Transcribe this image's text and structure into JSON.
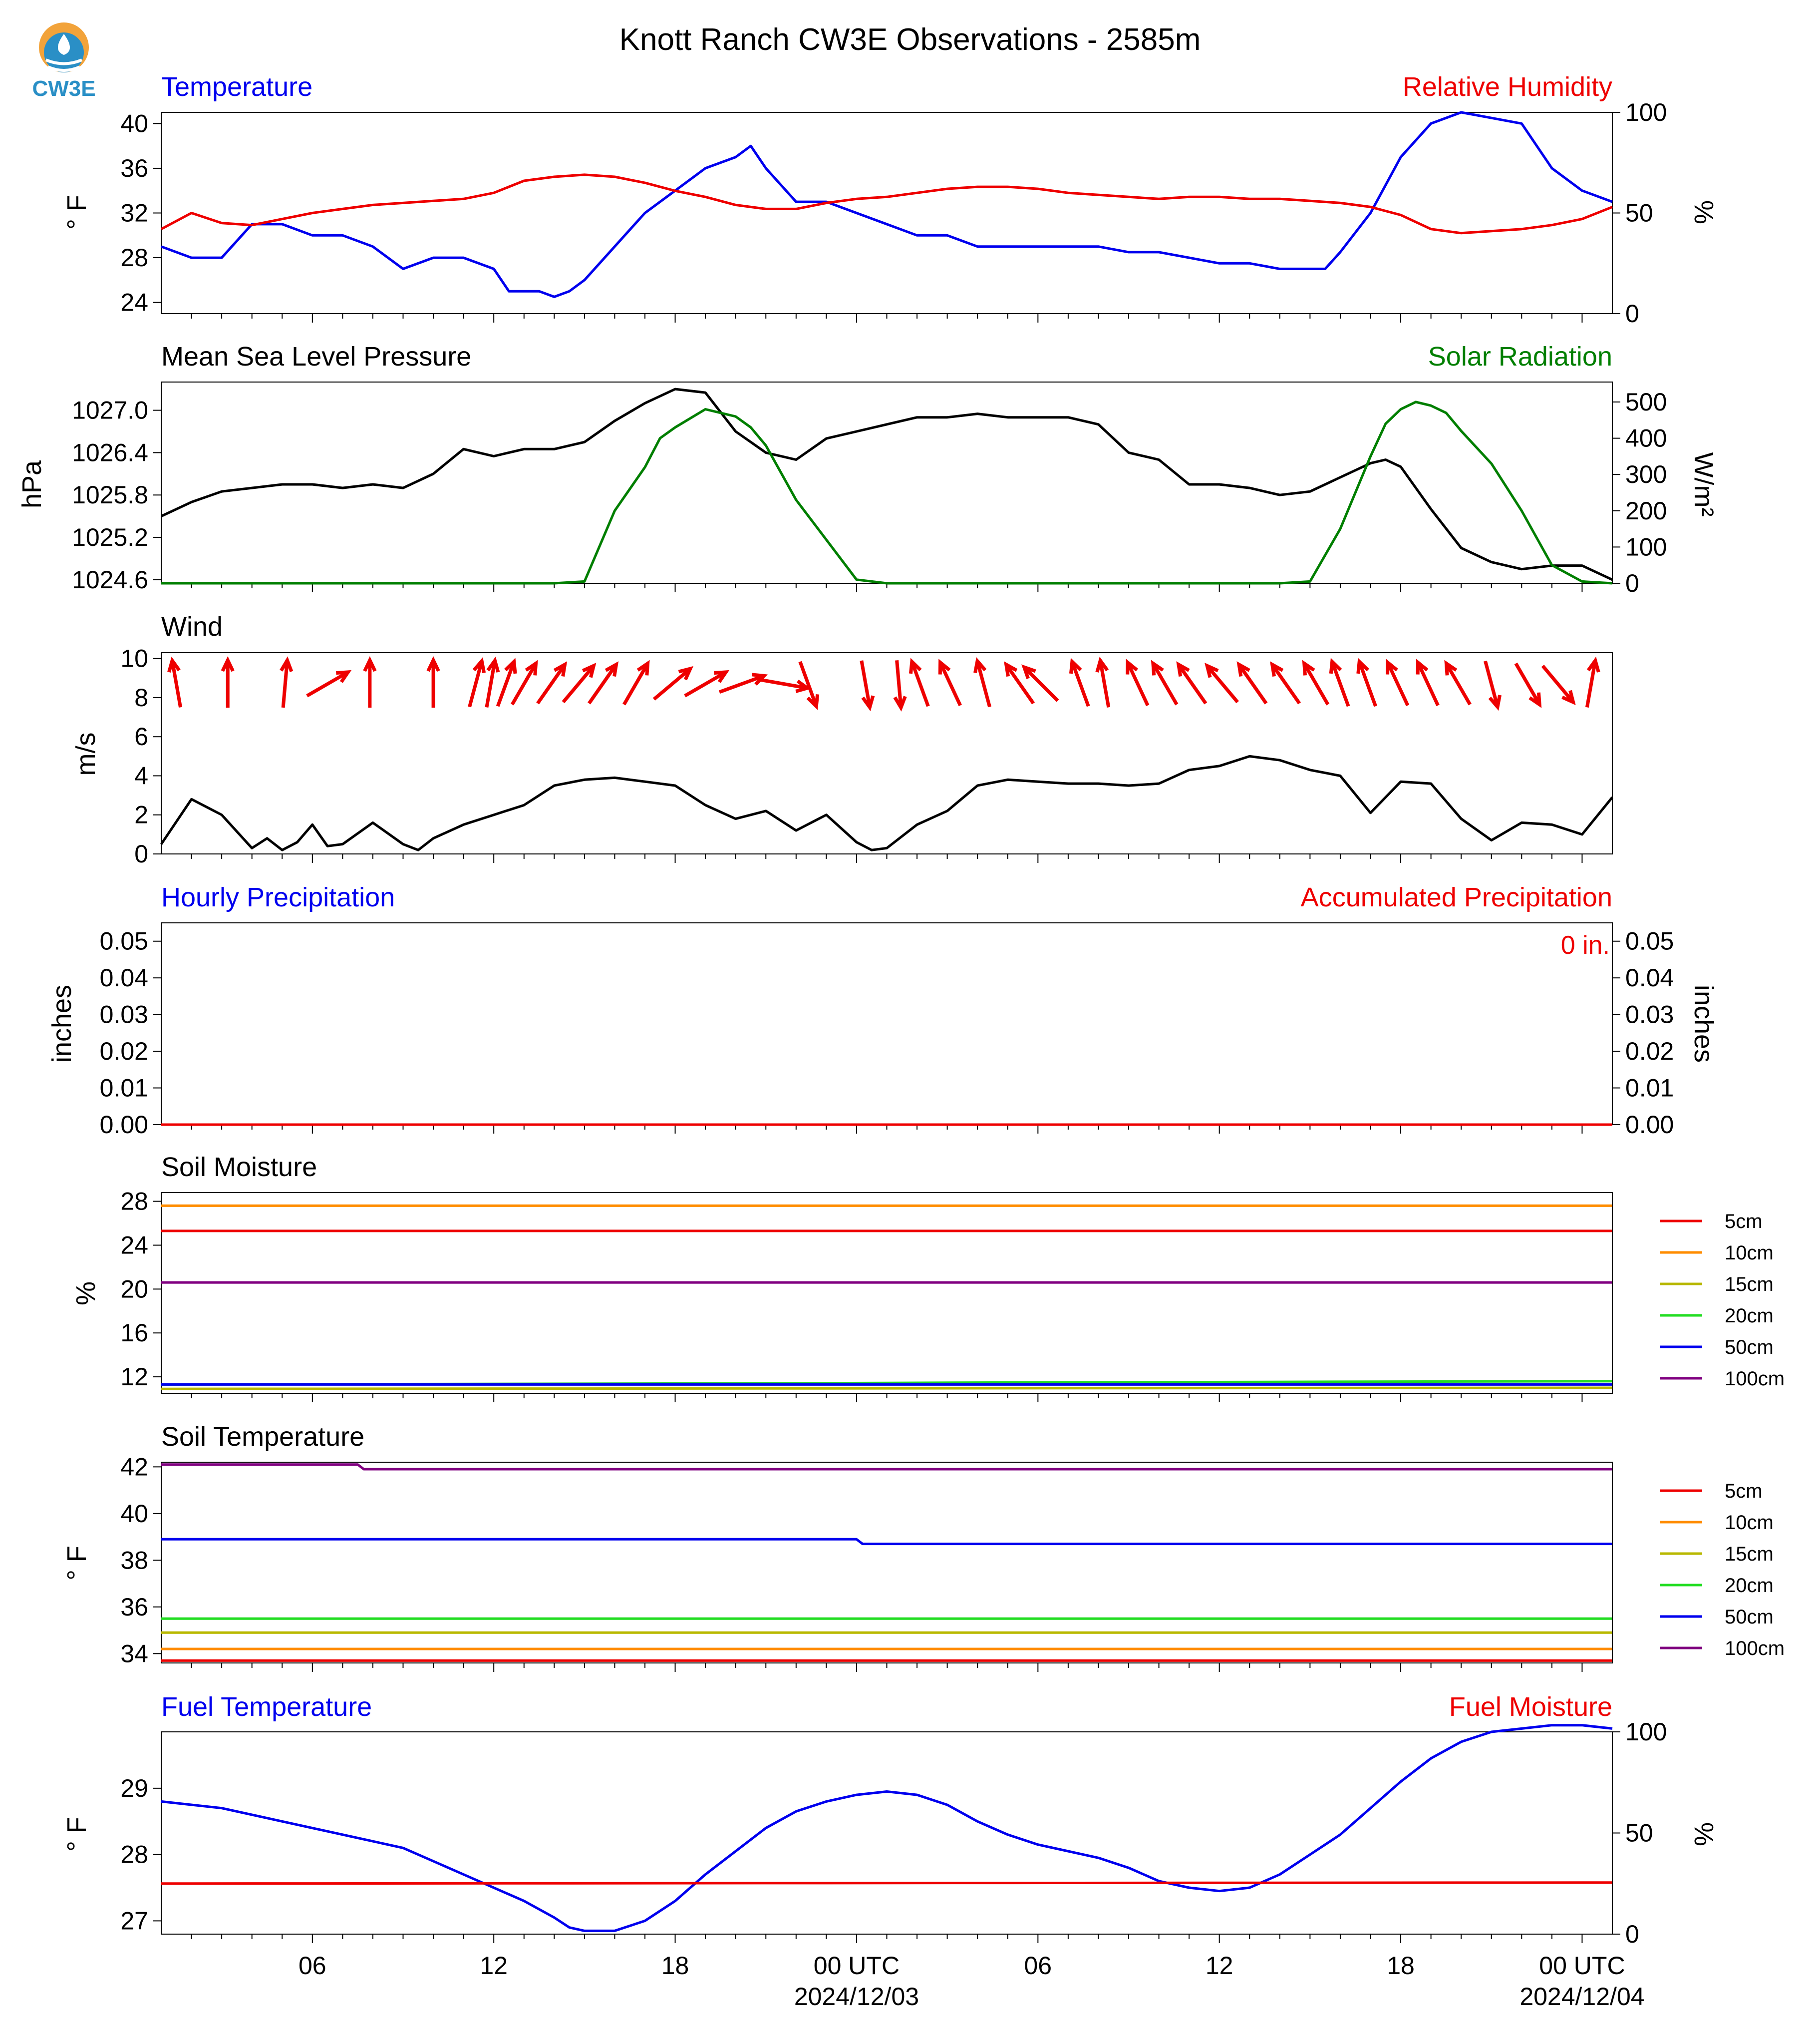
{
  "header": {
    "title": "Knott Ranch CW3E Observations - 2585m",
    "logo_text": "CW3E"
  },
  "colors": {
    "blue": "#0000ee",
    "red": "#ee0000",
    "green": "#007f00",
    "black": "#000000",
    "logo_blue": "#2a8fc6",
    "logo_orange": "#f2a33a"
  },
  "x_axis": {
    "unit": "hours since start of plot",
    "range": [
      0,
      48
    ],
    "major_ticks": [
      {
        "hour": 5,
        "label": "06",
        "sub": ""
      },
      {
        "hour": 11,
        "label": "12",
        "sub": ""
      },
      {
        "hour": 17,
        "label": "18",
        "sub": ""
      },
      {
        "hour": 23,
        "label": "00 UTC",
        "sub": "2024/12/03"
      },
      {
        "hour": 29,
        "label": "06",
        "sub": ""
      },
      {
        "hour": 35,
        "label": "12",
        "sub": ""
      },
      {
        "hour": 41,
        "label": "18",
        "sub": ""
      },
      {
        "hour": 47,
        "label": "00 UTC",
        "sub": "2024/12/04"
      }
    ]
  },
  "panels": {
    "temperature": {
      "left_title": "Temperature",
      "right_title": "Relative Humidity",
      "left_label": "° F",
      "right_label": "%",
      "left_ticks": [
        "24",
        "28",
        "32",
        "36",
        "40"
      ],
      "right_ticks": [
        "0",
        "50",
        "100"
      ]
    },
    "pressure": {
      "left_title": "Mean Sea Level Pressure",
      "right_title": "Solar Radiation",
      "left_label": "hPa",
      "right_label": "W/m²",
      "left_ticks": [
        "1024.6",
        "1025.2",
        "1025.8",
        "1026.4",
        "1027.0"
      ],
      "right_ticks": [
        "0",
        "100",
        "200",
        "300",
        "400",
        "500"
      ]
    },
    "wind": {
      "left_title": "Wind",
      "left_label": "m/s",
      "left_ticks": [
        "0",
        "2",
        "4",
        "6",
        "8",
        "10"
      ]
    },
    "precip": {
      "left_title": "Hourly Precipitation",
      "right_title": "Accumulated Precipitation",
      "left_label": "inches",
      "right_label": "inches",
      "left_ticks": [
        "0.00",
        "0.01",
        "0.02",
        "0.03",
        "0.04",
        "0.05"
      ],
      "right_ticks": [
        "0.00",
        "0.01",
        "0.02",
        "0.03",
        "0.04",
        "0.05"
      ],
      "accum_text": "0 in."
    },
    "soil_moisture": {
      "left_title": "Soil Moisture",
      "left_label": "%",
      "left_ticks": [
        "12",
        "16",
        "20",
        "24",
        "28"
      ],
      "legend": [
        "5cm",
        "10cm",
        "15cm",
        "20cm",
        "50cm",
        "100cm"
      ]
    },
    "soil_temp": {
      "left_title": "Soil Temperature",
      "left_label": "° F",
      "left_ticks": [
        "34",
        "36",
        "38",
        "40",
        "42"
      ],
      "legend": [
        "5cm",
        "10cm",
        "15cm",
        "20cm",
        "50cm",
        "100cm"
      ]
    },
    "fuel": {
      "left_title": "Fuel Temperature",
      "right_title": "Fuel Moisture",
      "left_label": "° F",
      "right_label": "%",
      "left_ticks": [
        "27",
        "28",
        "29"
      ],
      "right_ticks": [
        "0",
        "50",
        "100"
      ]
    }
  },
  "chart_data": [
    {
      "type": "line",
      "title": "Temperature / Relative Humidity",
      "ylabel": "° F",
      "y2label": "%",
      "ylim": [
        23,
        41
      ],
      "y2lim": [
        0,
        100
      ],
      "series": [
        {
          "name": "Temperature",
          "color": "#0000ee",
          "axis": "left",
          "x": [
            0,
            1,
            2,
            3,
            4,
            5,
            6,
            7,
            8,
            9,
            10,
            11,
            11.5,
            12,
            12.5,
            13,
            13.5,
            14,
            15,
            16,
            17,
            18,
            19,
            19.5,
            20,
            21,
            22,
            23,
            24,
            25,
            26,
            27,
            28,
            29,
            30,
            31,
            32,
            33,
            34,
            35,
            36,
            37,
            38,
            38.5,
            39,
            40,
            41,
            42,
            43,
            44,
            45,
            46,
            47,
            48
          ],
          "y": [
            29,
            28,
            28,
            31,
            31,
            30,
            30,
            29,
            27,
            28,
            28,
            27,
            25,
            25,
            25,
            24.5,
            25,
            26,
            29,
            32,
            34,
            36,
            37,
            38,
            36,
            33,
            33,
            32,
            31,
            30,
            30,
            29,
            29,
            29,
            29,
            29,
            28.5,
            28.5,
            28,
            27.5,
            27.5,
            27,
            27,
            27,
            28.5,
            32,
            37,
            40,
            41,
            40.5,
            40,
            36,
            34,
            33
          ]
        },
        {
          "name": "Relative Humidity",
          "color": "#ee0000",
          "axis": "right",
          "x": [
            0,
            1,
            2,
            3,
            4,
            5,
            6,
            7,
            8,
            9,
            10,
            11,
            12,
            13,
            14,
            15,
            16,
            17,
            18,
            19,
            20,
            21,
            22,
            23,
            24,
            25,
            26,
            27,
            28,
            29,
            30,
            31,
            32,
            33,
            34,
            35,
            36,
            37,
            38,
            39,
            40,
            41,
            42,
            43,
            44,
            45,
            46,
            47,
            48
          ],
          "y": [
            42,
            50,
            45,
            44,
            47,
            50,
            52,
            54,
            55,
            56,
            57,
            60,
            66,
            68,
            69,
            68,
            65,
            61,
            58,
            54,
            52,
            52,
            55,
            57,
            58,
            60,
            62,
            63,
            63,
            62,
            60,
            59,
            58,
            57,
            58,
            58,
            57,
            57,
            56,
            55,
            53,
            49,
            42,
            40,
            41,
            42,
            44,
            47,
            53
          ]
        }
      ]
    },
    {
      "type": "line",
      "title": "Mean Sea Level Pressure / Solar Radiation",
      "ylabel": "hPa",
      "y2label": "W/m²",
      "ylim": [
        1024.55,
        1027.4
      ],
      "y2lim": [
        0,
        555
      ],
      "series": [
        {
          "name": "Mean Sea Level Pressure",
          "color": "#000000",
          "axis": "left",
          "x": [
            0,
            1,
            2,
            3,
            4,
            5,
            6,
            7,
            8,
            9,
            10,
            11,
            12,
            13,
            14,
            15,
            16,
            17,
            18,
            19,
            20,
            21,
            22,
            23,
            24,
            25,
            26,
            27,
            28,
            29,
            30,
            31,
            32,
            33,
            34,
            35,
            36,
            37,
            38,
            39,
            40,
            40.5,
            41,
            42,
            43,
            44,
            45,
            46,
            47,
            48
          ],
          "y": [
            1025.5,
            1025.7,
            1025.85,
            1025.9,
            1025.95,
            1025.95,
            1025.9,
            1025.95,
            1025.9,
            1026.1,
            1026.45,
            1026.35,
            1026.45,
            1026.45,
            1026.55,
            1026.85,
            1027.1,
            1027.3,
            1027.25,
            1026.7,
            1026.4,
            1026.3,
            1026.6,
            1026.7,
            1026.8,
            1026.9,
            1026.9,
            1026.95,
            1026.9,
            1026.9,
            1026.9,
            1026.8,
            1026.4,
            1026.3,
            1025.95,
            1025.95,
            1025.9,
            1025.8,
            1025.85,
            1026.05,
            1026.25,
            1026.3,
            1026.2,
            1025.6,
            1025.05,
            1024.85,
            1024.75,
            1024.8,
            1024.8,
            1024.6
          ]
        },
        {
          "name": "Solar Radiation",
          "color": "#007f00",
          "axis": "right",
          "x": [
            0,
            12,
            13,
            14,
            15,
            16,
            16.5,
            17,
            18,
            19,
            19.5,
            20,
            21,
            22,
            23,
            24,
            36,
            37,
            38,
            39,
            40,
            40.5,
            41,
            41.5,
            42,
            42.5,
            43,
            44,
            45,
            46,
            47,
            48
          ],
          "y": [
            0,
            0,
            0,
            5,
            200,
            320,
            400,
            430,
            480,
            460,
            430,
            380,
            230,
            120,
            10,
            0,
            0,
            0,
            5,
            150,
            350,
            440,
            480,
            500,
            490,
            470,
            420,
            330,
            200,
            50,
            5,
            0
          ]
        }
      ]
    },
    {
      "type": "line",
      "title": "Wind",
      "ylabel": "m/s",
      "ylim": [
        0,
        10.3
      ],
      "series": [
        {
          "name": "Wind speed",
          "color": "#000000",
          "x": [
            0,
            1,
            2,
            3,
            3.5,
            4,
            4.5,
            5,
            5.5,
            6,
            7,
            8,
            8.5,
            9,
            10,
            11,
            12,
            13,
            14,
            15,
            16,
            17,
            18,
            19,
            20,
            21,
            22,
            23,
            23.5,
            24,
            25,
            26,
            27,
            28,
            29,
            30,
            31,
            32,
            33,
            34,
            35,
            36,
            37,
            38,
            39,
            40,
            41,
            42,
            43,
            44,
            45,
            46,
            47,
            48
          ],
          "y": [
            0.5,
            2.8,
            2.0,
            0.3,
            0.8,
            0.2,
            0.6,
            1.5,
            0.4,
            0.5,
            1.6,
            0.5,
            0.2,
            0.8,
            1.5,
            2.0,
            2.5,
            3.5,
            3.8,
            3.9,
            3.7,
            3.5,
            2.5,
            1.8,
            2.2,
            1.2,
            2.0,
            0.6,
            0.2,
            0.3,
            1.5,
            2.2,
            3.5,
            3.8,
            3.7,
            3.6,
            3.6,
            3.5,
            3.6,
            4.3,
            4.5,
            5.0,
            4.8,
            4.3,
            4.0,
            2.1,
            3.7,
            3.6,
            1.8,
            0.7,
            1.6,
            1.5,
            1.0,
            2.9
          ]
        }
      ],
      "arrows_hours": [
        0.5,
        2.2,
        4.1,
        5.5,
        6.9,
        9,
        10.4,
        10.9,
        11.4,
        12,
        12.9,
        13.8,
        14.6,
        15.7,
        16.9,
        18,
        19.2,
        20.6,
        21.4,
        23.3,
        24.4,
        25.1,
        26.1,
        27.2,
        28.4,
        29.1,
        30.4,
        31.2,
        32.3,
        33.2,
        34.1,
        35.1,
        36.1,
        37.2,
        38.2,
        39,
        39.9,
        40.9,
        41.9,
        42.9,
        44,
        45.2,
        46.2,
        47.3
      ]
    },
    {
      "type": "line",
      "title": "Hourly Precipitation / Accumulated Precipitation",
      "ylabel": "inches",
      "y2label": "inches",
      "ylim": [
        0,
        0.055
      ],
      "y2lim": [
        0,
        0.055
      ],
      "series": [
        {
          "name": "Hourly Precipitation",
          "color": "#0000ee",
          "axis": "left",
          "x": [
            0,
            48
          ],
          "y": [
            0,
            0
          ]
        },
        {
          "name": "Accumulated Precipitation",
          "color": "#ee0000",
          "axis": "right",
          "x": [
            0,
            48
          ],
          "y": [
            0,
            0
          ]
        }
      ]
    },
    {
      "type": "line",
      "title": "Soil Moisture",
      "ylabel": "%",
      "ylim": [
        10.5,
        28.8
      ],
      "series": [
        {
          "name": "5cm",
          "color": "#ee0000",
          "x": [
            0,
            48
          ],
          "y": [
            25.3,
            25.3
          ]
        },
        {
          "name": "10cm",
          "color": "#ff8c00",
          "x": [
            0,
            48
          ],
          "y": [
            27.6,
            27.6
          ]
        },
        {
          "name": "15cm",
          "color": "#b8b800",
          "x": [
            0,
            48
          ],
          "y": [
            10.9,
            11.0
          ]
        },
        {
          "name": "20cm",
          "color": "#22dd22",
          "x": [
            0,
            19,
            30,
            48
          ],
          "y": [
            11.3,
            11.4,
            11.5,
            11.6
          ]
        },
        {
          "name": "50cm",
          "color": "#0000ee",
          "x": [
            0,
            48
          ],
          "y": [
            11.3,
            11.3
          ]
        },
        {
          "name": "100cm",
          "color": "#800080",
          "x": [
            0,
            48
          ],
          "y": [
            20.6,
            20.6
          ]
        }
      ]
    },
    {
      "type": "line",
      "title": "Soil Temperature",
      "ylabel": "° F",
      "ylim": [
        33.6,
        42.2
      ],
      "series": [
        {
          "name": "5cm",
          "color": "#ee0000",
          "x": [
            0,
            48
          ],
          "y": [
            33.7,
            33.7
          ]
        },
        {
          "name": "10cm",
          "color": "#ff8c00",
          "x": [
            0,
            48
          ],
          "y": [
            34.2,
            34.2
          ]
        },
        {
          "name": "15cm",
          "color": "#b8b800",
          "x": [
            0,
            48
          ],
          "y": [
            34.9,
            34.9
          ]
        },
        {
          "name": "20cm",
          "color": "#22dd22",
          "x": [
            0,
            48
          ],
          "y": [
            35.5,
            35.5
          ]
        },
        {
          "name": "50cm",
          "color": "#0000ee",
          "x": [
            0,
            23,
            23.2,
            48
          ],
          "y": [
            38.9,
            38.9,
            38.7,
            38.7
          ]
        },
        {
          "name": "100cm",
          "color": "#800080",
          "x": [
            0,
            6.5,
            6.7,
            48
          ],
          "y": [
            42.1,
            42.1,
            41.9,
            41.9
          ]
        }
      ]
    },
    {
      "type": "line",
      "title": "Fuel Temperature / Fuel Moisture",
      "ylabel": "° F",
      "y2label": "%",
      "ylim": [
        26.8,
        29.85
      ],
      "y2lim": [
        0,
        100
      ],
      "series": [
        {
          "name": "Fuel Temperature",
          "color": "#0000ee",
          "axis": "left",
          "x": [
            0,
            2,
            4,
            6,
            8,
            10,
            12,
            13,
            13.5,
            14,
            15,
            16,
            17,
            18,
            19,
            20,
            21,
            22,
            23,
            24,
            25,
            26,
            27,
            28,
            29,
            30,
            31,
            32,
            33,
            34,
            35,
            36,
            37,
            38,
            39,
            40,
            41,
            42,
            43,
            44,
            45,
            46,
            47,
            48
          ],
          "y": [
            28.8,
            28.7,
            28.5,
            28.3,
            28.1,
            27.7,
            27.3,
            27.05,
            26.9,
            26.85,
            26.85,
            27.0,
            27.3,
            27.7,
            28.05,
            28.4,
            28.65,
            28.8,
            28.9,
            28.95,
            28.9,
            28.75,
            28.5,
            28.3,
            28.15,
            28.05,
            27.95,
            27.8,
            27.6,
            27.5,
            27.45,
            27.5,
            27.7,
            28.0,
            28.3,
            28.7,
            29.1,
            29.45,
            29.7,
            29.85,
            29.9,
            29.95,
            29.95,
            29.9
          ]
        },
        {
          "name": "Fuel Moisture",
          "color": "#ee0000",
          "axis": "right",
          "x": [
            0,
            48
          ],
          "y": [
            25,
            25.5
          ]
        }
      ]
    }
  ]
}
